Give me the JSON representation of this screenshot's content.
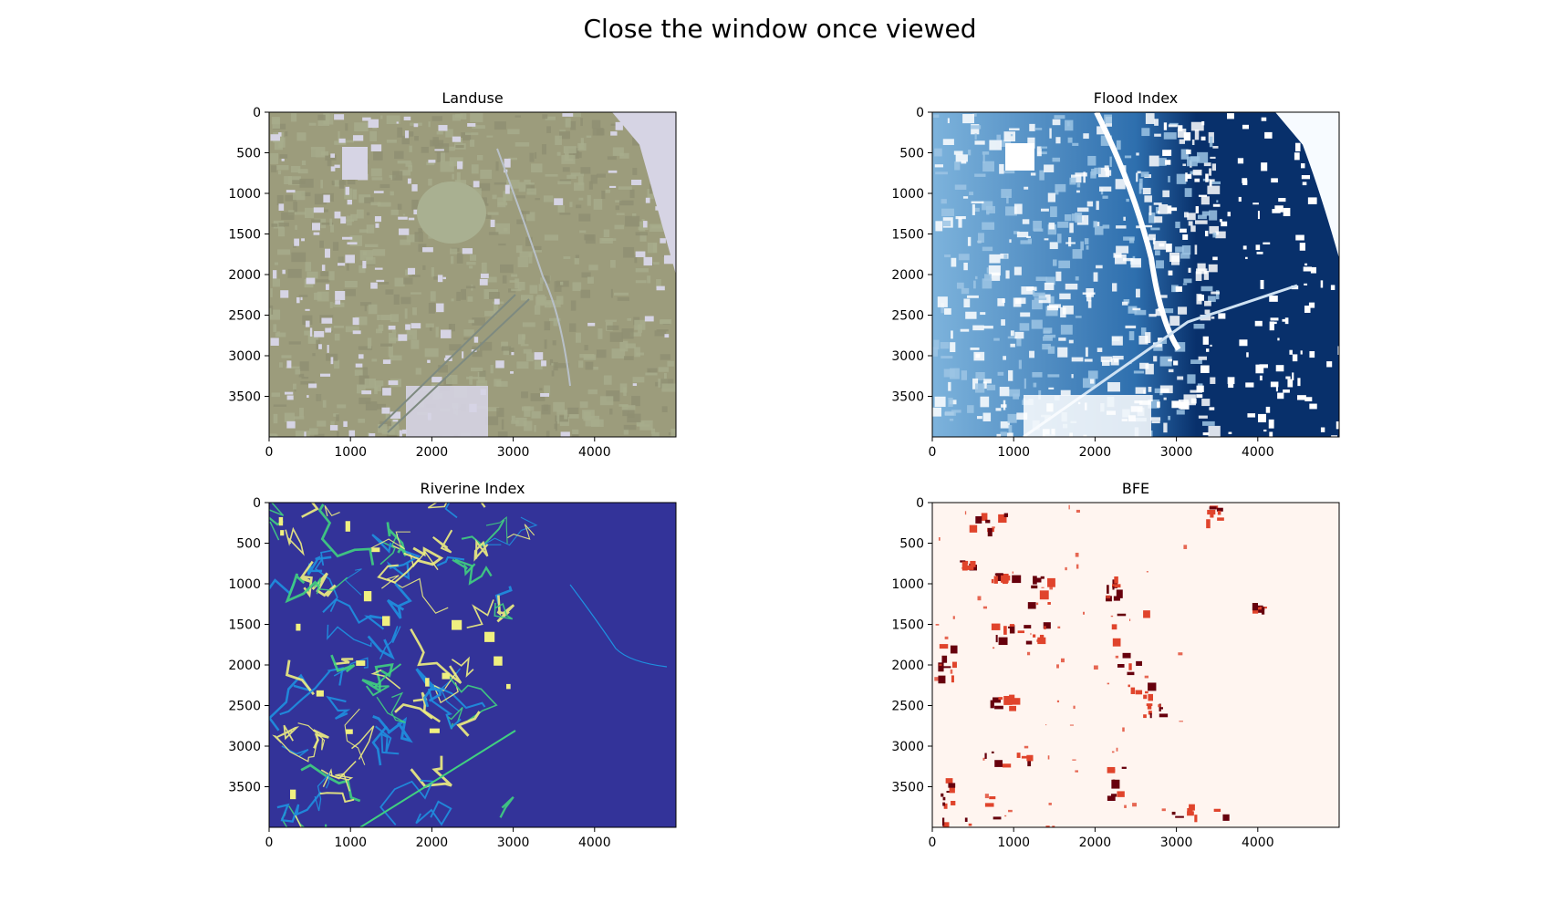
{
  "figure_title": "Close the window once viewed",
  "chart_data": [
    {
      "type": "heatmap",
      "title": "Landuse",
      "xlim": [
        0,
        5000
      ],
      "ylim": [
        4000,
        0
      ],
      "xticks": [
        0,
        1000,
        2000,
        3000,
        4000
      ],
      "yticks": [
        0,
        500,
        1000,
        1500,
        2000,
        2500,
        3000,
        3500
      ],
      "colors": {
        "base": "#9c9c7c",
        "light": "#d6d4e4",
        "dark": "#2f3b2f",
        "mid": "#a8ac8c"
      },
      "grid": false
    },
    {
      "type": "heatmap",
      "title": "Flood Index",
      "xlim": [
        0,
        5000
      ],
      "ylim": [
        4000,
        0
      ],
      "xticks": [
        0,
        1000,
        2000,
        3000,
        4000
      ],
      "yticks": [
        0,
        500,
        1000,
        1500,
        2000,
        2500,
        3000,
        3500
      ],
      "colormap": "Blues",
      "colors": {
        "low": "#f7fbff",
        "mid": "#4a90c8",
        "high": "#08306b"
      },
      "grid": false
    },
    {
      "type": "heatmap",
      "title": "Riverine Index",
      "xlim": [
        0,
        5000
      ],
      "ylim": [
        4000,
        0
      ],
      "xticks": [
        0,
        1000,
        2000,
        3000,
        4000
      ],
      "yticks": [
        0,
        500,
        1000,
        1500,
        2000,
        2500,
        3000,
        3500
      ],
      "colormap": "terrain",
      "colors": {
        "background": "#333399",
        "low": "#1e90e0",
        "mid": "#40d080",
        "high": "#f0f080"
      },
      "grid": false
    },
    {
      "type": "heatmap",
      "title": "BFE",
      "xlim": [
        0,
        5000
      ],
      "ylim": [
        4000,
        0
      ],
      "xticks": [
        0,
        1000,
        2000,
        3000,
        4000
      ],
      "yticks": [
        0,
        500,
        1000,
        1500,
        2000,
        2500,
        3000,
        3500
      ],
      "colormap": "Reds",
      "colors": {
        "background": "#fff5f0",
        "mid": "#e0442c",
        "high": "#67000d"
      },
      "grid": false
    }
  ]
}
